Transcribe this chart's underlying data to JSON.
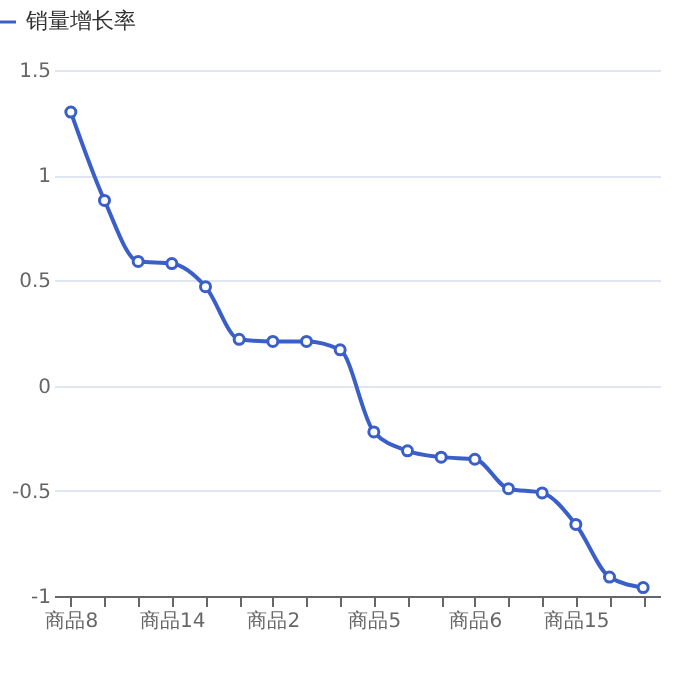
{
  "chart_data": {
    "type": "line",
    "categories": [
      "商品8",
      null,
      null,
      "商品14",
      null,
      null,
      "商品2",
      null,
      null,
      "商品5",
      null,
      null,
      "商品6",
      null,
      null,
      "商品15",
      null,
      null
    ],
    "series": [
      {
        "name": "销量增长率",
        "color": "#3b5fc8",
        "values": [
          1.3,
          0.88,
          0.59,
          0.58,
          0.47,
          0.22,
          0.21,
          0.21,
          0.17,
          -0.22,
          -0.31,
          -0.34,
          -0.35,
          -0.49,
          -0.51,
          -0.66,
          -0.91,
          -0.96
        ]
      }
    ],
    "ylim": [
      -1,
      1.5
    ],
    "yticks": [
      -1,
      -0.5,
      0,
      0.5,
      1,
      1.5
    ],
    "grid": "y",
    "legend": "top left",
    "marker": "circle",
    "line_style": "solid"
  }
}
